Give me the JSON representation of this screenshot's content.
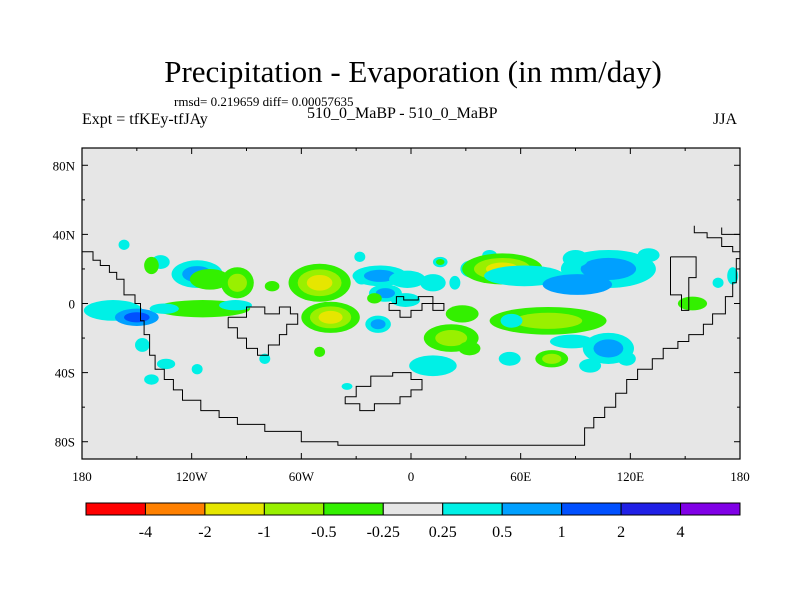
{
  "header": {
    "title": "Precipitation - Evaporation (in mm/day)",
    "stats": "rmsd= 0.219659 diff= 0.00057635",
    "left_label": "Expt = tfKEy-tfJAy",
    "center_label": "510_0_MaBP - 510_0_MaBP",
    "right_label": "JJA"
  },
  "chart_data": {
    "type": "heatmap",
    "title": "Precipitation - Evaporation (in mm/day)",
    "x_range": [
      -180,
      180
    ],
    "y_range": [
      -90,
      90
    ],
    "x_ticks": [
      {
        "value": -180,
        "label": "180"
      },
      {
        "value": -120,
        "label": "120W"
      },
      {
        "value": -60,
        "label": "60W"
      },
      {
        "value": 0,
        "label": "0"
      },
      {
        "value": 60,
        "label": "60E"
      },
      {
        "value": 120,
        "label": "120E"
      },
      {
        "value": 180,
        "label": "180"
      }
    ],
    "y_ticks": [
      {
        "value": 80,
        "label": "80N"
      },
      {
        "value": 40,
        "label": "40N"
      },
      {
        "value": 0,
        "label": "0"
      },
      {
        "value": -40,
        "label": "40S"
      },
      {
        "value": -80,
        "label": "80S"
      }
    ],
    "background_color": "#e6e6e6",
    "colorbar": {
      "labels": [
        "-4",
        "-2",
        "-1",
        "-0.5",
        "-0.25",
        "0.25",
        "0.5",
        "1",
        "2",
        "4"
      ],
      "colors": [
        "#ff0000",
        "#ff8000",
        "#e6e600",
        "#99f000",
        "#33f000",
        "#e6e6e6",
        "#00f0e6",
        "#00a0ff",
        "#0050ff",
        "#2020e6",
        "#8000e6"
      ]
    },
    "regions": [
      {
        "lon": -157,
        "lat": 34,
        "rlon": 3,
        "rlat": 3,
        "levels": [
          "#00f0e6"
        ]
      },
      {
        "lon": -137,
        "lat": 24,
        "rlon": 5,
        "rlat": 4,
        "levels": [
          "#00f0e6"
        ]
      },
      {
        "lon": -142,
        "lat": 22,
        "rlon": 4,
        "rlat": 5,
        "levels": [
          "#33f000"
        ]
      },
      {
        "lon": -117,
        "lat": 17,
        "rlon": 14,
        "rlat": 8,
        "levels": [
          "#00f0e6",
          "#00a0ff"
        ]
      },
      {
        "lon": -110,
        "lat": 14,
        "rlon": 11,
        "rlat": 6,
        "levels": [
          "#33f000"
        ]
      },
      {
        "lon": -95,
        "lat": 12,
        "rlon": 9,
        "rlat": 9,
        "levels": [
          "#33f000",
          "#99f000"
        ]
      },
      {
        "lon": -76,
        "lat": 10,
        "rlon": 4,
        "rlat": 3,
        "levels": [
          "#33f000"
        ]
      },
      {
        "lon": -50,
        "lat": 12,
        "rlon": 17,
        "rlat": 11,
        "levels": [
          "#33f000",
          "#99f000",
          "#e6e600"
        ]
      },
      {
        "lon": -27,
        "lat": 15,
        "rlon": 4,
        "rlat": 4,
        "levels": [
          "#00f0e6"
        ]
      },
      {
        "lon": -17,
        "lat": 16,
        "rlon": 15,
        "rlat": 6,
        "levels": [
          "#00f0e6",
          "#00a0ff"
        ]
      },
      {
        "lon": -2,
        "lat": 14,
        "rlon": 10,
        "rlat": 5,
        "levels": [
          "#00f0e6"
        ]
      },
      {
        "lon": 12,
        "lat": 12,
        "rlon": 7,
        "rlat": 5,
        "levels": [
          "#00f0e6"
        ]
      },
      {
        "lon": -28,
        "lat": 27,
        "rlon": 3,
        "rlat": 3,
        "levels": [
          "#00f0e6"
        ]
      },
      {
        "lon": 24,
        "lat": 12,
        "rlon": 3,
        "rlat": 4,
        "levels": [
          "#00f0e6"
        ]
      },
      {
        "lon": -14,
        "lat": 6,
        "rlon": 9,
        "rlat": 5,
        "levels": [
          "#00f0e6",
          "#00a0ff"
        ]
      },
      {
        "lon": -3,
        "lat": 2,
        "rlon": 8,
        "rlat": 4,
        "levels": [
          "#00f0e6"
        ]
      },
      {
        "lon": -20,
        "lat": 3,
        "rlon": 4,
        "rlat": 3,
        "levels": [
          "#33f000"
        ]
      },
      {
        "lon": 16,
        "lat": 24,
        "rlon": 4,
        "rlat": 3,
        "levels": [
          "#00f0e6",
          "#33f000"
        ]
      },
      {
        "lon": 33,
        "lat": 20,
        "rlon": 6,
        "rlat": 5,
        "levels": [
          "#00f0e6"
        ]
      },
      {
        "lon": 43,
        "lat": 28,
        "rlon": 4,
        "rlat": 3,
        "levels": [
          "#00f0e6"
        ]
      },
      {
        "lon": 50,
        "lat": 20,
        "rlon": 22,
        "rlat": 9,
        "levels": [
          "#33f000",
          "#99f000",
          "#e6e600"
        ]
      },
      {
        "lon": 62,
        "lat": 16,
        "rlon": 22,
        "rlat": 6,
        "levels": [
          "#00f0e6"
        ]
      },
      {
        "lon": 108,
        "lat": 20,
        "rlon": 26,
        "rlat": 11,
        "levels": [
          "#00f0e6",
          "#00a0ff"
        ]
      },
      {
        "lon": 91,
        "lat": 11,
        "rlon": 19,
        "rlat": 6,
        "levels": [
          "#00a0ff"
        ]
      },
      {
        "lon": 90,
        "lat": 26,
        "rlon": 7,
        "rlat": 5,
        "levels": [
          "#00f0e6"
        ]
      },
      {
        "lon": 130,
        "lat": 28,
        "rlon": 6,
        "rlat": 4,
        "levels": [
          "#00f0e6"
        ]
      },
      {
        "lon": 176,
        "lat": 16,
        "rlon": 3,
        "rlat": 5,
        "levels": [
          "#00f0e6"
        ]
      },
      {
        "lon": 168,
        "lat": 12,
        "rlon": 3,
        "rlat": 3,
        "levels": [
          "#00f0e6"
        ]
      },
      {
        "lon": 154,
        "lat": 0,
        "rlon": 8,
        "rlat": 4,
        "levels": [
          "#33f000"
        ]
      },
      {
        "lon": -163,
        "lat": -4,
        "rlon": 16,
        "rlat": 6,
        "levels": [
          "#00f0e6"
        ]
      },
      {
        "lon": -150,
        "lat": -8,
        "rlon": 12,
        "rlat": 5,
        "levels": [
          "#00a0ff",
          "#0050ff"
        ]
      },
      {
        "lon": -114,
        "lat": -3,
        "rlon": 26,
        "rlat": 5,
        "levels": [
          "#33f000"
        ]
      },
      {
        "lon": -135,
        "lat": -3,
        "rlon": 8,
        "rlat": 3,
        "levels": [
          "#00f0e6"
        ]
      },
      {
        "lon": -96,
        "lat": -1,
        "rlon": 9,
        "rlat": 3,
        "levels": [
          "#00f0e6"
        ]
      },
      {
        "lon": -44,
        "lat": -8,
        "rlon": 16,
        "rlat": 9,
        "levels": [
          "#33f000",
          "#99f000",
          "#e6e600"
        ]
      },
      {
        "lon": -18,
        "lat": -12,
        "rlon": 7,
        "rlat": 5,
        "levels": [
          "#00f0e6",
          "#00a0ff"
        ]
      },
      {
        "lon": -50,
        "lat": -28,
        "rlon": 3,
        "rlat": 3,
        "levels": [
          "#33f000"
        ]
      },
      {
        "lon": 28,
        "lat": -6,
        "rlon": 9,
        "rlat": 5,
        "levels": [
          "#33f000"
        ]
      },
      {
        "lon": 75,
        "lat": -10,
        "rlon": 32,
        "rlat": 8,
        "levels": [
          "#33f000",
          "#99f000"
        ]
      },
      {
        "lon": 55,
        "lat": -10,
        "rlon": 6,
        "rlat": 4,
        "levels": [
          "#00f0e6"
        ]
      },
      {
        "lon": 108,
        "lat": -26,
        "rlon": 14,
        "rlat": 9,
        "levels": [
          "#00f0e6",
          "#00a0ff"
        ]
      },
      {
        "lon": 88,
        "lat": -22,
        "rlon": 12,
        "rlat": 4,
        "levels": [
          "#00f0e6"
        ]
      },
      {
        "lon": 22,
        "lat": -20,
        "rlon": 15,
        "rlat": 8,
        "levels": [
          "#33f000",
          "#99f000"
        ]
      },
      {
        "lon": 32,
        "lat": -26,
        "rlon": 6,
        "rlat": 4,
        "levels": [
          "#33f000"
        ]
      },
      {
        "lon": 12,
        "lat": -36,
        "rlon": 13,
        "rlat": 6,
        "levels": [
          "#00f0e6"
        ]
      },
      {
        "lon": 54,
        "lat": -32,
        "rlon": 6,
        "rlat": 4,
        "levels": [
          "#00f0e6"
        ]
      },
      {
        "lon": 77,
        "lat": -32,
        "rlon": 9,
        "rlat": 5,
        "levels": [
          "#33f000",
          "#99f000"
        ]
      },
      {
        "lon": 98,
        "lat": -36,
        "rlon": 6,
        "rlat": 4,
        "levels": [
          "#00f0e6"
        ]
      },
      {
        "lon": 118,
        "lat": -32,
        "rlon": 5,
        "rlat": 4,
        "levels": [
          "#00f0e6"
        ]
      },
      {
        "lon": -147,
        "lat": -24,
        "rlon": 4,
        "rlat": 4,
        "levels": [
          "#00f0e6"
        ]
      },
      {
        "lon": -134,
        "lat": -35,
        "rlon": 5,
        "rlat": 3,
        "levels": [
          "#00f0e6"
        ]
      },
      {
        "lon": -142,
        "lat": -44,
        "rlon": 4,
        "rlat": 3,
        "levels": [
          "#00f0e6"
        ]
      },
      {
        "lon": -117,
        "lat": -38,
        "rlon": 3,
        "rlat": 3,
        "levels": [
          "#00f0e6"
        ]
      },
      {
        "lon": -80,
        "lat": -32,
        "rlon": 3,
        "rlat": 3,
        "levels": [
          "#00f0e6"
        ]
      },
      {
        "lon": -35,
        "lat": -48,
        "rlon": 3,
        "rlat": 2,
        "levels": [
          "#00f0e6"
        ]
      }
    ],
    "coastlines": [
      [
        [
          -180,
          30
        ],
        [
          -174,
          30
        ],
        [
          -174,
          25
        ],
        [
          -170,
          25
        ],
        [
          -170,
          22
        ],
        [
          -165,
          22
        ],
        [
          -165,
          18
        ],
        [
          -161,
          18
        ],
        [
          -161,
          14
        ],
        [
          -157,
          14
        ],
        [
          -157,
          5
        ],
        [
          -151,
          5
        ],
        [
          -151,
          0
        ],
        [
          -148,
          0
        ],
        [
          -148,
          -10
        ],
        [
          -146,
          -10
        ],
        [
          -146,
          -18
        ],
        [
          -143,
          -18
        ],
        [
          -143,
          -30
        ],
        [
          -140,
          -30
        ],
        [
          -140,
          -38
        ],
        [
          -135,
          -38
        ],
        [
          -135,
          -44
        ],
        [
          -130,
          -44
        ],
        [
          -130,
          -50
        ],
        [
          -125,
          -50
        ],
        [
          -125,
          -56
        ],
        [
          -115,
          -56
        ],
        [
          -115,
          -62
        ],
        [
          -105,
          -62
        ],
        [
          -105,
          -66
        ],
        [
          -95,
          -66
        ],
        [
          -95,
          -70
        ],
        [
          -80,
          -70
        ],
        [
          -80,
          -74
        ],
        [
          -60,
          -74
        ],
        [
          -60,
          -80
        ],
        [
          -40,
          -80
        ],
        [
          -40,
          -82
        ],
        [
          65,
          -82
        ],
        [
          90,
          -82
        ],
        [
          95,
          -82
        ],
        [
          95,
          -72
        ],
        [
          100,
          -72
        ],
        [
          100,
          -66
        ],
        [
          106,
          -66
        ],
        [
          106,
          -60
        ],
        [
          112,
          -60
        ],
        [
          112,
          -52
        ],
        [
          118,
          -52
        ],
        [
          118,
          -44
        ],
        [
          124,
          -44
        ],
        [
          124,
          -38
        ],
        [
          132,
          -38
        ],
        [
          132,
          -32
        ],
        [
          138,
          -32
        ],
        [
          138,
          -26
        ],
        [
          146,
          -26
        ],
        [
          146,
          -22
        ],
        [
          152,
          -22
        ],
        [
          152,
          -18
        ],
        [
          160,
          -18
        ],
        [
          160,
          -12
        ],
        [
          165,
          -12
        ],
        [
          165,
          -6
        ],
        [
          172,
          -6
        ],
        [
          172,
          4
        ],
        [
          176,
          4
        ],
        [
          176,
          12
        ],
        [
          178,
          12
        ],
        [
          178,
          26
        ],
        [
          180,
          26
        ]
      ],
      [
        [
          180,
          30
        ],
        [
          176,
          30
        ],
        [
          176,
          33
        ],
        [
          170,
          33
        ],
        [
          170,
          38
        ],
        [
          162,
          38
        ],
        [
          162,
          41
        ],
        [
          155,
          41
        ],
        [
          155,
          45
        ]
      ],
      [
        [
          -100,
          -8
        ],
        [
          -100,
          -14
        ],
        [
          -95,
          -14
        ],
        [
          -95,
          -20
        ],
        [
          -90,
          -20
        ],
        [
          -90,
          -26
        ],
        [
          -84,
          -26
        ],
        [
          -84,
          -30
        ],
        [
          -78,
          -30
        ],
        [
          -78,
          -24
        ],
        [
          -72,
          -24
        ],
        [
          -72,
          -18
        ],
        [
          -68,
          -18
        ],
        [
          -68,
          -12
        ],
        [
          -62,
          -12
        ],
        [
          -62,
          -6
        ],
        [
          -66,
          -6
        ],
        [
          -66,
          -2
        ],
        [
          -72,
          -2
        ],
        [
          -72,
          -6
        ],
        [
          -80,
          -6
        ],
        [
          -80,
          -2
        ],
        [
          -90,
          -2
        ],
        [
          -90,
          -8
        ],
        [
          -100,
          -8
        ]
      ],
      [
        [
          -12,
          0
        ],
        [
          -12,
          -4
        ],
        [
          -6,
          -4
        ],
        [
          -6,
          -8
        ],
        [
          0,
          -8
        ],
        [
          0,
          -4
        ],
        [
          6,
          -4
        ],
        [
          6,
          0
        ],
        [
          12,
          0
        ],
        [
          12,
          -4
        ],
        [
          18,
          -4
        ],
        [
          18,
          0
        ],
        [
          12,
          0
        ],
        [
          12,
          4
        ],
        [
          4,
          4
        ],
        [
          4,
          2
        ],
        [
          -4,
          2
        ],
        [
          -4,
          4
        ],
        [
          -8,
          4
        ],
        [
          -8,
          0
        ],
        [
          -12,
          0
        ]
      ],
      [
        [
          -36,
          -54
        ],
        [
          -36,
          -58
        ],
        [
          -28,
          -58
        ],
        [
          -28,
          -62
        ],
        [
          -20,
          -62
        ],
        [
          -20,
          -58
        ],
        [
          -6,
          -58
        ],
        [
          -6,
          -54
        ],
        [
          0,
          -54
        ],
        [
          0,
          -50
        ],
        [
          6,
          -50
        ],
        [
          6,
          -44
        ],
        [
          0,
          -44
        ],
        [
          0,
          -40
        ],
        [
          -10,
          -40
        ],
        [
          -10,
          -42
        ],
        [
          -22,
          -42
        ],
        [
          -22,
          -48
        ],
        [
          -30,
          -48
        ],
        [
          -30,
          -54
        ],
        [
          -36,
          -54
        ]
      ],
      [
        [
          142,
          27
        ],
        [
          142,
          5
        ],
        [
          148,
          5
        ],
        [
          148,
          -4
        ],
        [
          152,
          -4
        ],
        [
          152,
          15
        ],
        [
          156,
          15
        ],
        [
          156,
          27
        ],
        [
          142,
          27
        ]
      ],
      [
        [
          170,
          44
        ],
        [
          170,
          40
        ],
        [
          180,
          40
        ]
      ]
    ]
  }
}
